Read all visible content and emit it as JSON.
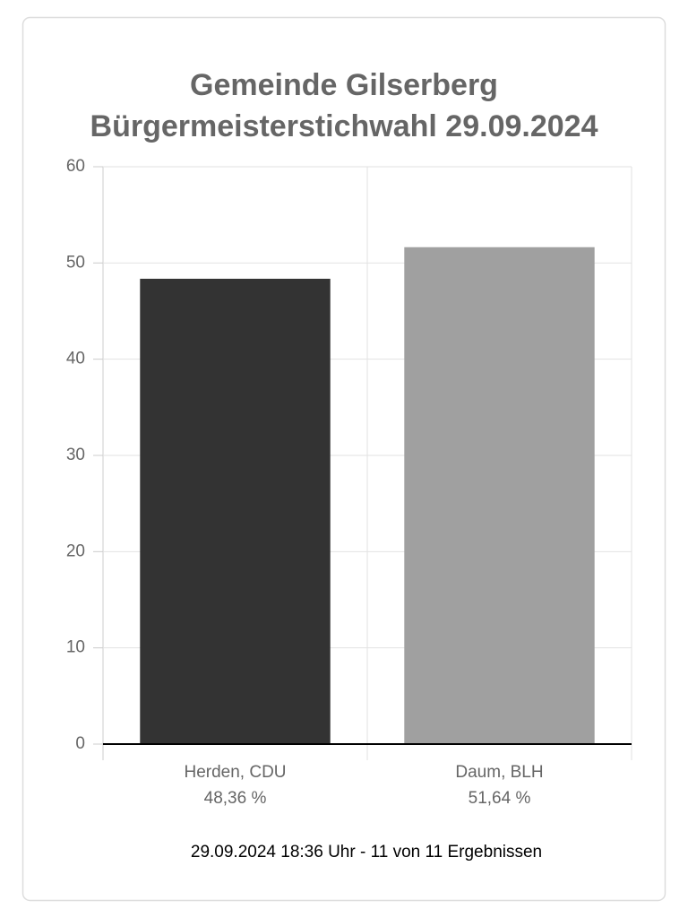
{
  "chart_data": {
    "type": "bar",
    "title": [
      "Gemeinde Gilserberg",
      "Bürgermeisterstichwahl 29.09.2024"
    ],
    "categories": [
      "Herden, CDU",
      "Daum, BLH"
    ],
    "values": [
      48.36,
      51.64
    ],
    "value_labels": [
      "48,36 %",
      "51,64 %"
    ],
    "colors": [
      "#333333",
      "#a0a0a0"
    ],
    "ylim": [
      0,
      60
    ],
    "yticks": [
      0,
      10,
      20,
      30,
      40,
      50,
      60
    ],
    "grid": true,
    "note": "29.09.2024 18:36 Uhr - 11 von 11 Ergebnissen"
  }
}
